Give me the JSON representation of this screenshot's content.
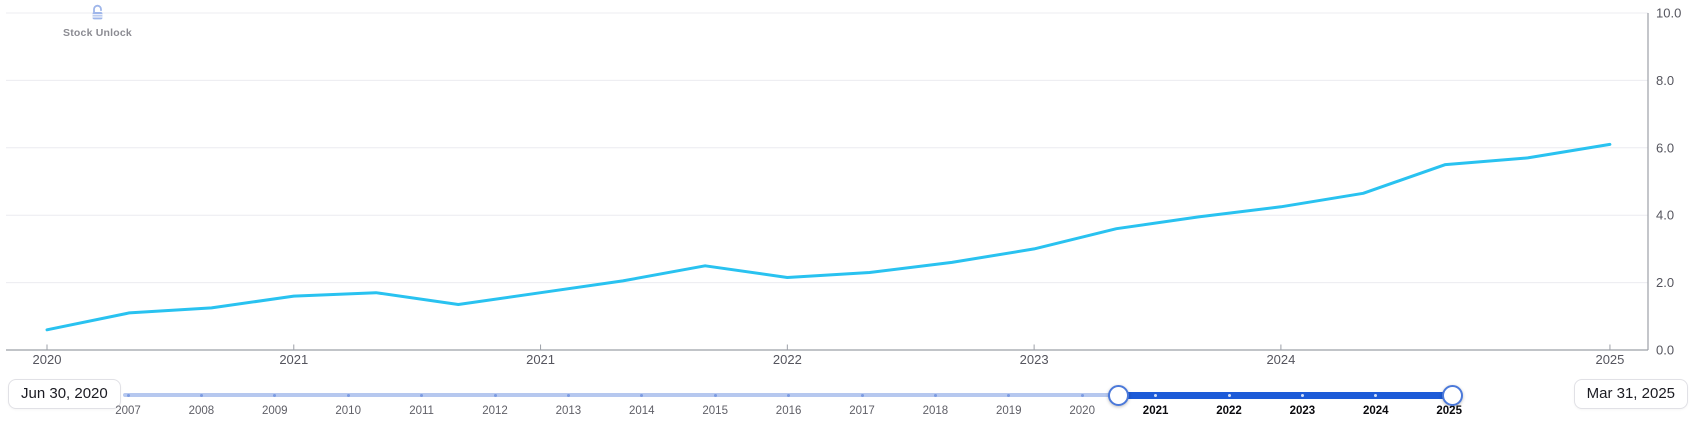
{
  "watermark": {
    "label": "Stock Unlock",
    "icon_color": "#9fb6ea",
    "text_color": "#8b8b92"
  },
  "chart_data": {
    "type": "line",
    "title": "",
    "xlabel": "",
    "ylabel": "",
    "x": [
      "Jun 30, 2020",
      "Sep 30, 2020",
      "Dec 31, 2020",
      "Mar 31, 2021",
      "Jun 30, 2021",
      "Sep 30, 2021",
      "Dec 31, 2021",
      "Mar 31, 2022",
      "Jun 30, 2022",
      "Sep 30, 2022",
      "Dec 31, 2022",
      "Mar 31, 2023",
      "Jun 30, 2023",
      "Sep 30, 2023",
      "Dec 31, 2023",
      "Mar 31, 2024",
      "Jun 30, 2024",
      "Sep 30, 2024",
      "Dec 31, 2024",
      "Mar 31, 2025"
    ],
    "series": [
      {
        "name": "value",
        "color": "#29c2f0",
        "values": [
          0.6,
          1.1,
          1.25,
          1.6,
          1.7,
          1.35,
          1.7,
          2.05,
          2.5,
          2.15,
          2.3,
          2.6,
          3.0,
          3.6,
          3.95,
          4.25,
          4.65,
          5.5,
          5.7,
          6.1
        ]
      }
    ],
    "x_tick_indices": [
      0,
      3,
      6,
      9,
      12,
      15,
      19
    ],
    "x_tick_labels": [
      "2020",
      "2021",
      "2021",
      "2022",
      "2023",
      "2024",
      "2025"
    ],
    "y_ticks": [
      "0.0",
      "2.0",
      "4.0",
      "6.0",
      "8.0",
      "10.0"
    ],
    "y_tick_values": [
      0,
      2,
      4,
      6,
      8,
      10
    ],
    "ylim": [
      0,
      10
    ],
    "grid": "horizontal",
    "legend": "none",
    "grid_color": "#ececf0",
    "axis_color": "#9ca0a8",
    "tick_label_color": "#55555e"
  },
  "slider": {
    "start_badge": "Jun 30, 2020",
    "end_badge": "Mar 31, 2025",
    "years": [
      "2007",
      "2008",
      "2009",
      "2010",
      "2011",
      "2012",
      "2013",
      "2014",
      "2015",
      "2016",
      "2017",
      "2018",
      "2019",
      "2020",
      "2021",
      "2022",
      "2023",
      "2024",
      "2025"
    ],
    "selected_years": [
      "2021",
      "2022",
      "2023",
      "2024",
      "2025"
    ],
    "selection_start": 2020.5,
    "selection_end": 2025.05,
    "track_color": "#b6c8ef",
    "active_color": "#1d5bd8",
    "dot_color": "#7d9ce2",
    "active_dot_color": "rgba(255,255,255,0.8)",
    "handle_border_color": "#4b79da"
  }
}
